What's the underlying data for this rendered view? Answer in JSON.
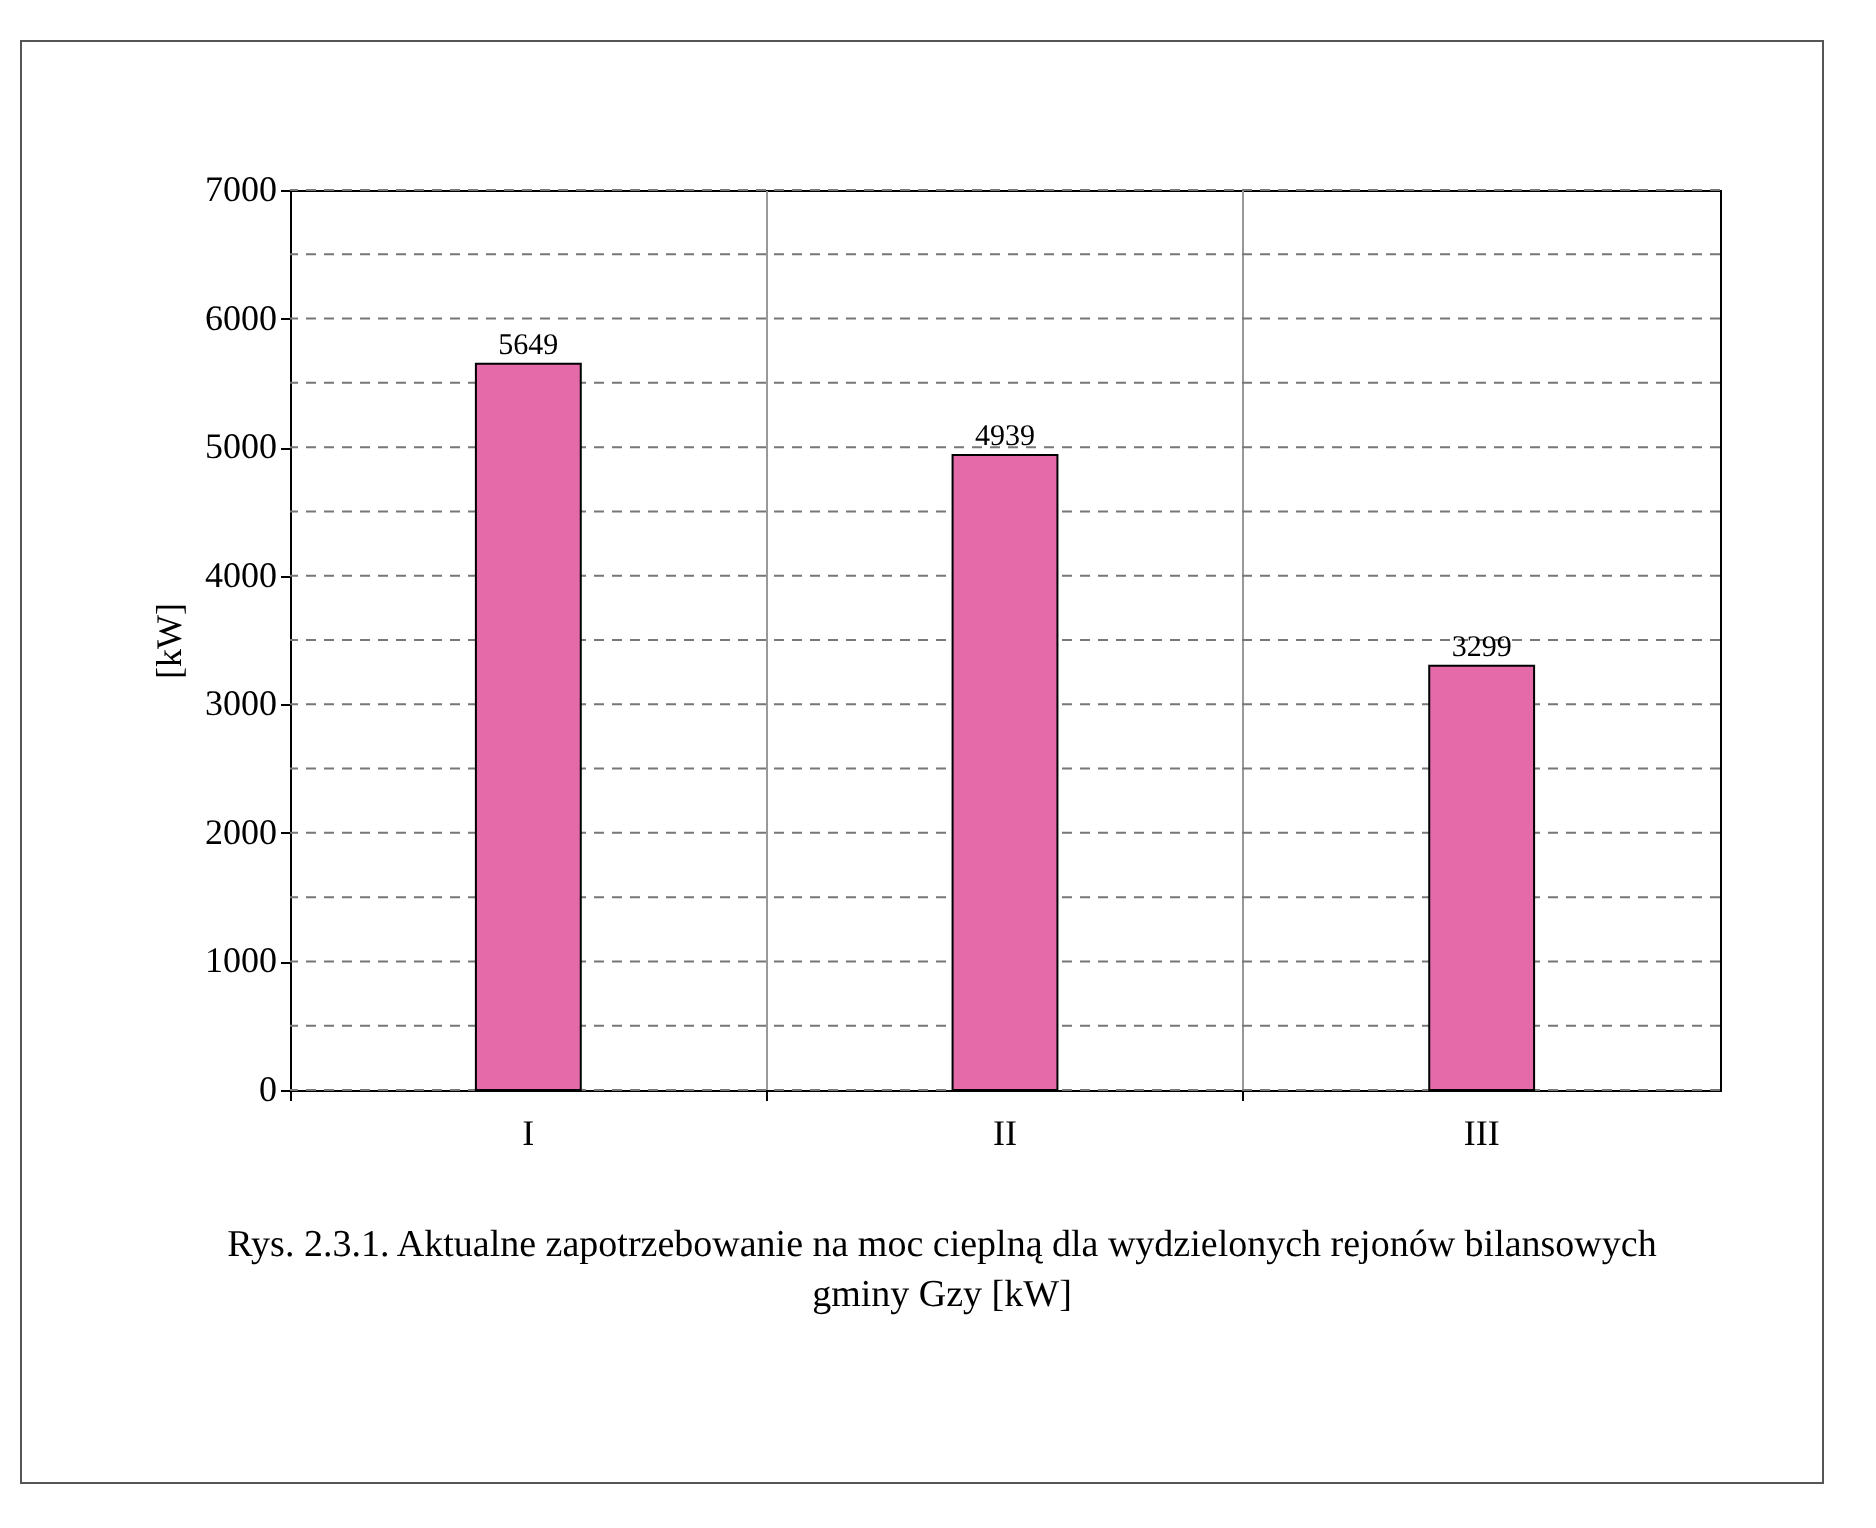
{
  "chart_data": {
    "type": "bar",
    "ylabel": "[kW]",
    "categories": [
      "I",
      "II",
      "III"
    ],
    "values": [
      5649,
      4939,
      3299
    ],
    "color": "#e46aa9",
    "ylim": [
      0,
      7000
    ],
    "yticks": [
      0,
      {
        "value": 500,
        "label": null
      },
      1000,
      {
        "value": 1500,
        "label": null
      },
      2000,
      {
        "value": 2500,
        "label": null
      },
      3000,
      {
        "value": 3500,
        "label": null
      },
      4000,
      {
        "value": 4500,
        "label": null
      },
      5000,
      {
        "value": 5500,
        "label": null
      },
      6000,
      {
        "value": 6500,
        "label": null
      },
      7000
    ],
    "grid": true,
    "data_labels": true,
    "annotations": [
      "Rys. 2.3.1. Aktualne zapotrzebowanie na moc cieplną dla wydzielonych rejonów bilansowych gminy Gzy [kW]"
    ]
  }
}
